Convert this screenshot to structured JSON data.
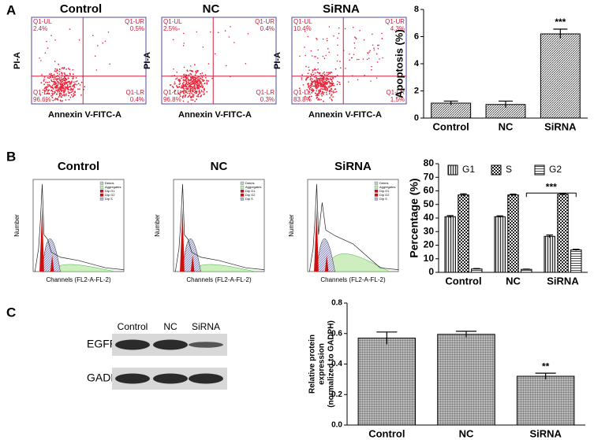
{
  "panel_labels": [
    "A",
    "B",
    "C"
  ],
  "flow_plots": {
    "y_label": "PI-A",
    "x_label": "Annexin V-FITC-A",
    "plots": [
      {
        "title": "Control",
        "quadrants": [
          {
            "name": "Q1-UL",
            "value": "2.4%"
          },
          {
            "name": "Q1-UR",
            "value": "0.5%"
          },
          {
            "name": "Q1-LL",
            "value": "96.6%"
          },
          {
            "name": "Q1-LR",
            "value": "0.4%"
          }
        ]
      },
      {
        "title": "NC",
        "quadrants": [
          {
            "name": "Q1-UL",
            "value": "2.5%"
          },
          {
            "name": "Q1-UR",
            "value": "0.4%"
          },
          {
            "name": "Q1-LL",
            "value": "96.8%"
          },
          {
            "name": "Q1-LR",
            "value": "0.3%"
          }
        ]
      },
      {
        "title": "SiRNA",
        "quadrants": [
          {
            "name": "Q1-UL",
            "value": "10.4%"
          },
          {
            "name": "Q1-UR",
            "value": "4.3%"
          },
          {
            "name": "Q1-LL",
            "value": "83.8%"
          },
          {
            "name": "Q1-LR",
            "value": "1.5%"
          }
        ]
      }
    ]
  },
  "histograms": {
    "y_label": "Number",
    "x_label": "Channels (FL2-A-FL-2)",
    "legend": [
      "Debris",
      "Aggregates",
      "Dip G1",
      "Dip G2",
      "Dip S"
    ],
    "titles": [
      "Control",
      "NC",
      "SiRNA"
    ]
  },
  "blot": {
    "columns": [
      "Control",
      "NC",
      "SiRNA"
    ],
    "rows": [
      "EGFR",
      "GADPH"
    ]
  },
  "chart_data": [
    {
      "type": "bar",
      "y_label": "Apoptosis (%)",
      "categories": [
        "Control",
        "NC",
        "SiRNA"
      ],
      "values": [
        1.1,
        1.0,
        6.2
      ],
      "errors": [
        0.15,
        0.25,
        0.35
      ],
      "pattern": "diagonal",
      "ylim": [
        0,
        8
      ],
      "yticks": [
        0,
        2,
        4,
        6,
        8
      ],
      "annotation": "***"
    },
    {
      "type": "grouped-bar",
      "y_label": "Percentage (%)",
      "categories": [
        "Control",
        "NC",
        "SiRNA"
      ],
      "series": [
        {
          "name": "G1",
          "pattern": "vertical",
          "values": [
            41,
            41,
            26.5
          ],
          "errors": [
            0.8,
            0.6,
            1
          ]
        },
        {
          "name": "S",
          "pattern": "checker",
          "values": [
            57,
            57,
            57.5
          ],
          "errors": [
            0.8,
            0.6,
            0.6
          ]
        },
        {
          "name": "G2",
          "pattern": "horizontal",
          "values": [
            2.5,
            2.2,
            16.5
          ],
          "errors": [
            0.3,
            0.2,
            0.5
          ]
        }
      ],
      "ylim": [
        0,
        80
      ],
      "yticks": [
        0,
        10,
        20,
        30,
        40,
        50,
        60,
        70,
        80
      ],
      "annotation": "***"
    },
    {
      "type": "bar",
      "y_label": [
        "Relative protein",
        "expression",
        "(normalized to GADPH)"
      ],
      "categories": [
        "Control",
        "NC",
        "SiRNA"
      ],
      "values": [
        0.57,
        0.595,
        0.32
      ],
      "errors": [
        0.04,
        0.02,
        0.02
      ],
      "pattern": "grid",
      "ylim": [
        0,
        0.8
      ],
      "yticks": [
        {
          "value": 0,
          "label": "0.0"
        },
        0.2,
        0.4,
        0.6,
        0.8
      ],
      "annotation": "**"
    }
  ]
}
